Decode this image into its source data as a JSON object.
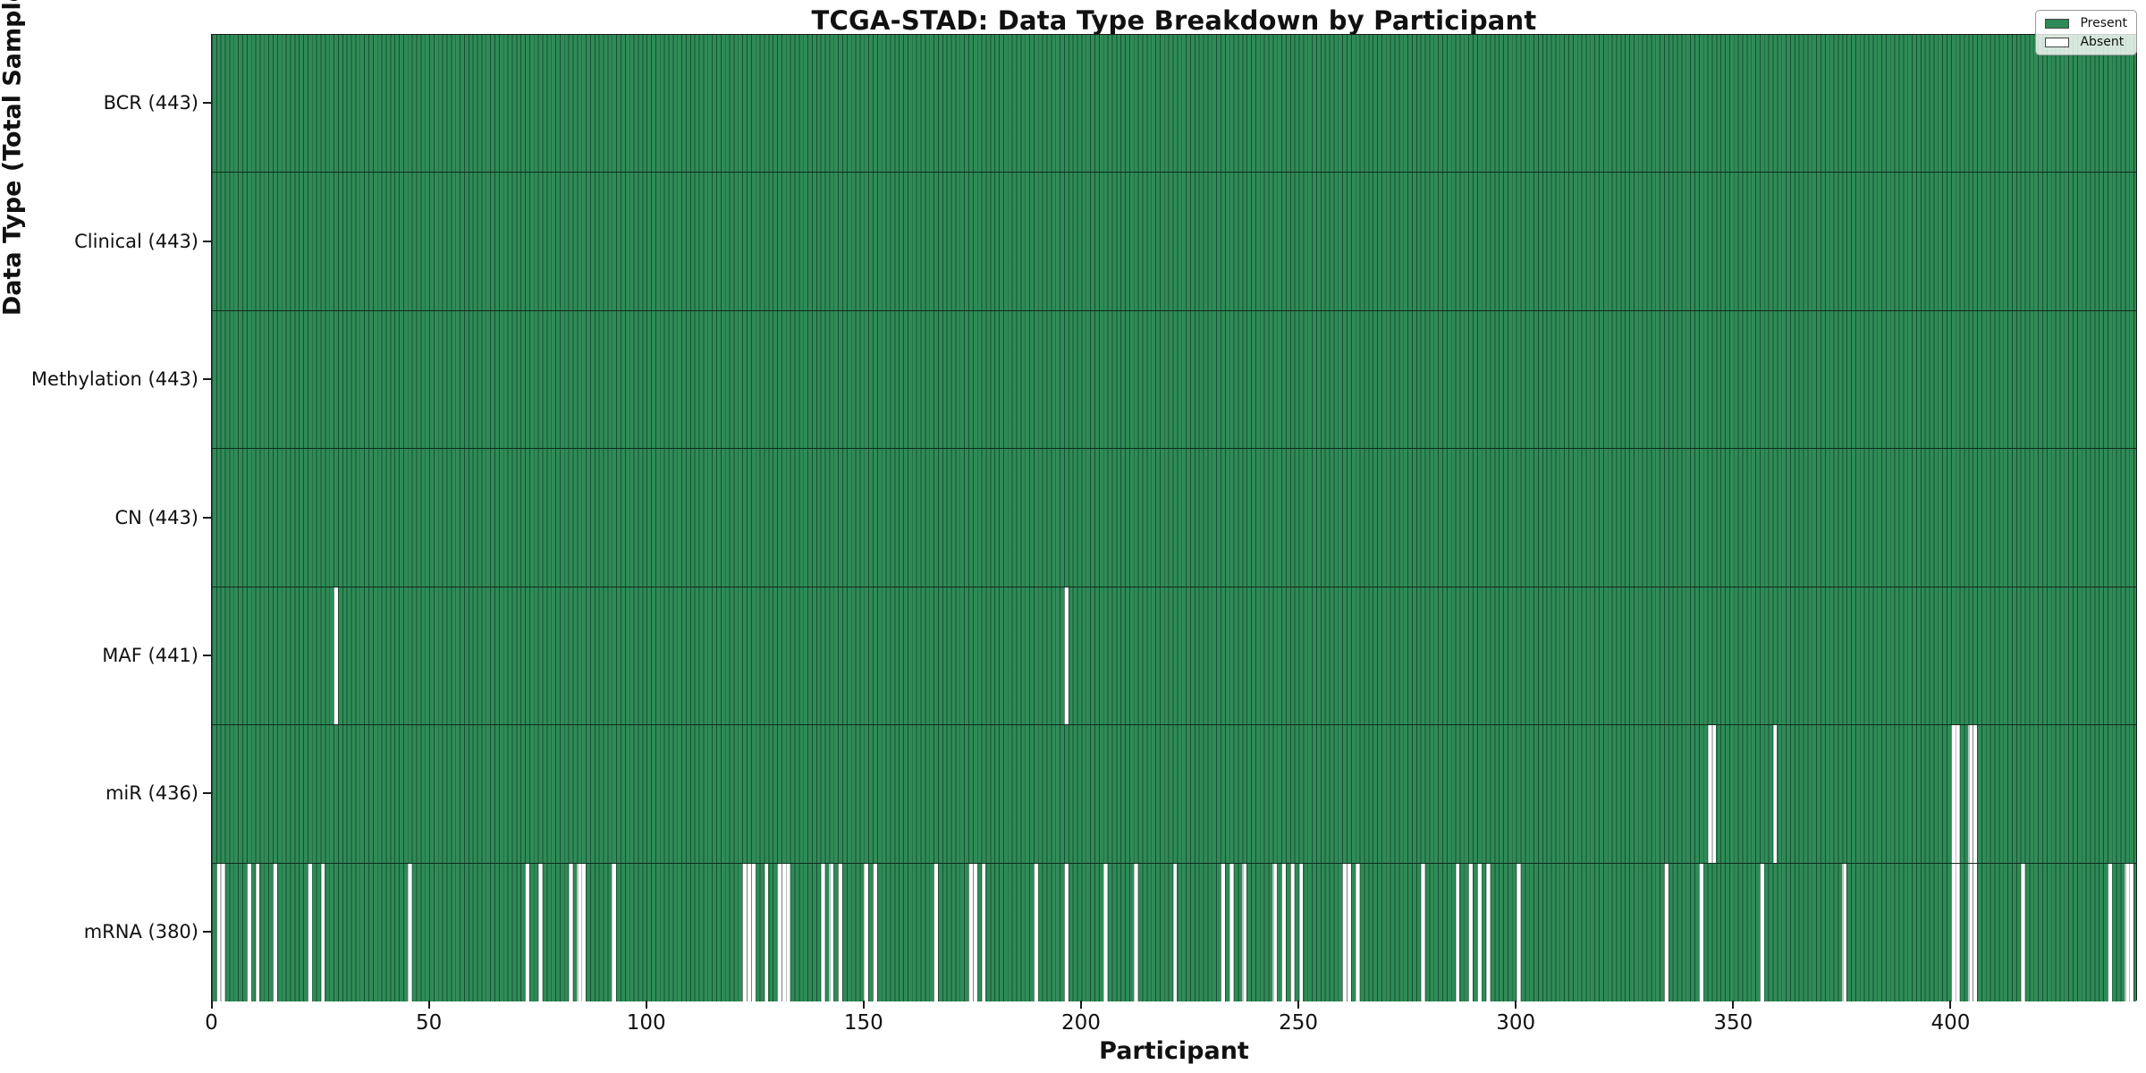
{
  "title": "TCGA-STAD: Data Type Breakdown by Participant",
  "x_axis": {
    "label": "Participant",
    "ticks": [
      0,
      50,
      100,
      150,
      200,
      250,
      300,
      350,
      400
    ],
    "total_participants": 443
  },
  "y_axis": {
    "label": "Data Type (Total Sample Count)"
  },
  "legend": {
    "entries": [
      {
        "label": "Present",
        "color": "#2e8b57"
      },
      {
        "label": "Absent",
        "color": "#ffffff"
      }
    ]
  },
  "colors": {
    "present": "#2e8b57",
    "absent": "#ffffff",
    "bar_edge": "#12301e",
    "axis": "#1a1a1a",
    "background": "#ffffff"
  },
  "chart_data": {
    "type": "heatmap",
    "subtype": "presence-absence barcode",
    "x_range": [
      0,
      443
    ],
    "grid": false,
    "legend_position": "upper right",
    "rows": [
      {
        "id": "bcr",
        "label": "BCR (443)",
        "data_type": "BCR",
        "present_count": 443,
        "absent_participants": []
      },
      {
        "id": "clinical",
        "label": "Clinical (443)",
        "data_type": "Clinical",
        "present_count": 443,
        "absent_participants": []
      },
      {
        "id": "methylation",
        "label": "Methylation (443)",
        "data_type": "Methylation",
        "present_count": 443,
        "absent_participants": []
      },
      {
        "id": "cn",
        "label": "CN (443)",
        "data_type": "CN",
        "present_count": 443,
        "absent_participants": []
      },
      {
        "id": "maf",
        "label": "MAF (441)",
        "data_type": "MAF",
        "present_count": 441,
        "absent_participants": [
          28,
          196
        ]
      },
      {
        "id": "mir",
        "label": "miR (436)",
        "data_type": "miR",
        "present_count": 436,
        "absent_participants": [
          344,
          345,
          359,
          400,
          401,
          404,
          405
        ]
      },
      {
        "id": "mrna",
        "label": "mRNA (380)",
        "data_type": "mRNA",
        "present_count": 380,
        "absent_participants": [
          1,
          2,
          8,
          10,
          14,
          22,
          25,
          45,
          72,
          75,
          82,
          84,
          85,
          92,
          122,
          123,
          124,
          127,
          130,
          131,
          132,
          140,
          142,
          144,
          150,
          152,
          166,
          174,
          175,
          177,
          189,
          196,
          205,
          212,
          221,
          232,
          234,
          237,
          244,
          246,
          248,
          250,
          260,
          261,
          263,
          278,
          286,
          289,
          291,
          293,
          300,
          334,
          342,
          356,
          375,
          400,
          401,
          404,
          405,
          416,
          436,
          440,
          441
        ]
      }
    ]
  }
}
